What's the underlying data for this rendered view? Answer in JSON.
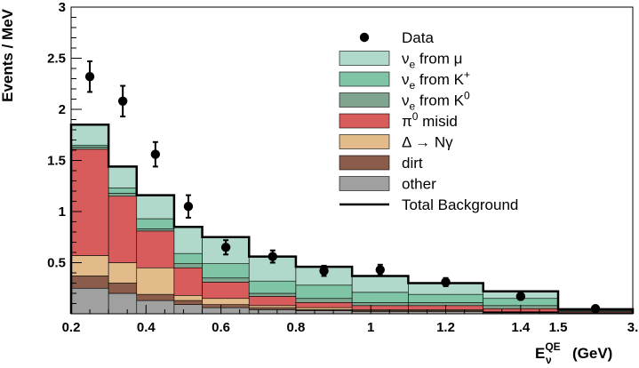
{
  "chart_data": {
    "type": "stacked-histogram",
    "xlabel": {
      "main": "E",
      "sup": "QE",
      "sub": "ν",
      "unit": "(GeV)"
    },
    "ylabel": "Events / MeV",
    "xlim": [
      0.2,
      3.0
    ],
    "ylim": [
      0,
      3
    ],
    "x_breaks": [
      0.2,
      1.5,
      3.0
    ],
    "x_ticks": [
      {
        "value": 0.2,
        "label": "0.2"
      },
      {
        "value": 0.4,
        "label": "0.4"
      },
      {
        "value": 0.6,
        "label": "0.6"
      },
      {
        "value": 0.8,
        "label": "0.8"
      },
      {
        "value": 1.0,
        "label": "1"
      },
      {
        "value": 1.2,
        "label": "1.2"
      },
      {
        "value": 1.4,
        "label": "1.4"
      },
      {
        "value": 1.5,
        "label": "1.5"
      },
      {
        "value": 3.0,
        "label": "3."
      }
    ],
    "y_ticks": [
      {
        "value": 0.5,
        "label": "0.5"
      },
      {
        "value": 1.0,
        "label": "1"
      },
      {
        "value": 1.5,
        "label": "1.5"
      },
      {
        "value": 2.0,
        "label": "2"
      },
      {
        "value": 2.5,
        "label": "2.5"
      },
      {
        "value": 3.0,
        "label": "3"
      }
    ],
    "bin_edges": [
      0.2,
      0.3,
      0.375,
      0.475,
      0.55,
      0.675,
      0.8,
      0.95,
      1.1,
      1.3,
      1.5,
      3.0
    ],
    "series": [
      {
        "name": "other",
        "color": "#a0a0a0",
        "values": [
          0.25,
          0.2,
          0.13,
          0.09,
          0.06,
          0.04,
          0.03,
          0.02,
          0.02,
          0.01,
          0.005
        ]
      },
      {
        "name": "dirt",
        "color": "#8a5c49",
        "values": [
          0.12,
          0.1,
          0.06,
          0.04,
          0.03,
          0.02,
          0.01,
          0.01,
          0.01,
          0.005,
          0.003
        ]
      },
      {
        "name": "Δ → Nγ",
        "color": "#e3bb8a",
        "values": [
          0.2,
          0.2,
          0.26,
          0.05,
          0.06,
          0.02,
          0.02,
          0.01,
          0.01,
          0.005,
          0.003
        ]
      },
      {
        "name": "π⁰ misid",
        "color": "#d85c5c",
        "values": [
          1.04,
          0.65,
          0.36,
          0.27,
          0.16,
          0.09,
          0.05,
          0.04,
          0.04,
          0.03,
          0.01
        ]
      },
      {
        "name": "νe from K⁰",
        "color": "#7fa58f",
        "values": [
          0.02,
          0.03,
          0.02,
          0.04,
          0.04,
          0.03,
          0.04,
          0.03,
          0.03,
          0.03,
          0.01
        ]
      },
      {
        "name": "νe from K⁺",
        "color": "#7fc4a4",
        "values": [
          0.02,
          0.05,
          0.1,
          0.1,
          0.14,
          0.12,
          0.13,
          0.1,
          0.08,
          0.07,
          0.01
        ]
      },
      {
        "name": "νe from μ",
        "color": "#b1d9cb",
        "values": [
          0.2,
          0.21,
          0.23,
          0.26,
          0.26,
          0.24,
          0.18,
          0.16,
          0.11,
          0.07,
          0.004
        ]
      }
    ],
    "total_background": {
      "name": "Total Background",
      "values": [
        1.85,
        1.44,
        1.16,
        0.85,
        0.75,
        0.56,
        0.46,
        0.37,
        0.3,
        0.22,
        0.045
      ]
    },
    "data": {
      "name": "Data",
      "points": [
        {
          "x": 0.25,
          "y": 2.32,
          "err": 0.15
        },
        {
          "x": 0.338,
          "y": 2.08,
          "err": 0.15
        },
        {
          "x": 0.425,
          "y": 1.56,
          "err": 0.12
        },
        {
          "x": 0.513,
          "y": 1.05,
          "err": 0.11
        },
        {
          "x": 0.613,
          "y": 0.65,
          "err": 0.07
        },
        {
          "x": 0.738,
          "y": 0.56,
          "err": 0.06
        },
        {
          "x": 0.875,
          "y": 0.42,
          "err": 0.05
        },
        {
          "x": 1.025,
          "y": 0.43,
          "err": 0.05
        },
        {
          "x": 1.2,
          "y": 0.31,
          "err": 0.04
        },
        {
          "x": 1.4,
          "y": 0.17,
          "err": 0.03
        },
        {
          "x": 2.25,
          "y": 0.05,
          "err": 0.01
        }
      ]
    },
    "legend": {
      "position": "top-right",
      "entries": [
        {
          "label": "Data",
          "style": "marker"
        },
        {
          "label": "νe from μ",
          "style": "box",
          "series": "νe from μ",
          "parts": {
            "main": "ν",
            "sub": "e",
            "rest": " from μ"
          }
        },
        {
          "label": "νe from K⁺",
          "style": "box",
          "series": "νe from K⁺",
          "parts": {
            "main": "ν",
            "sub": "e",
            "rest": " from K",
            "sup": "+"
          }
        },
        {
          "label": "νe from K⁰",
          "style": "box",
          "series": "νe from K⁰",
          "parts": {
            "main": "ν",
            "sub": "e",
            "rest": " from K",
            "sup": "0"
          }
        },
        {
          "label": "π⁰ misid",
          "style": "box",
          "series": "π⁰ misid",
          "parts": {
            "main": "π",
            "sup": "0",
            "rest": " misid"
          }
        },
        {
          "label": "Δ → Nγ",
          "style": "box",
          "series": "Δ → Nγ",
          "parts": {
            "main": "Δ → Nγ"
          }
        },
        {
          "label": "dirt",
          "style": "box",
          "series": "dirt",
          "parts": {
            "main": "dirt"
          }
        },
        {
          "label": "other",
          "style": "box",
          "series": "other",
          "parts": {
            "main": "other"
          }
        },
        {
          "label": "Total Background",
          "style": "line",
          "parts": {
            "main": "Total Background"
          }
        }
      ]
    }
  }
}
